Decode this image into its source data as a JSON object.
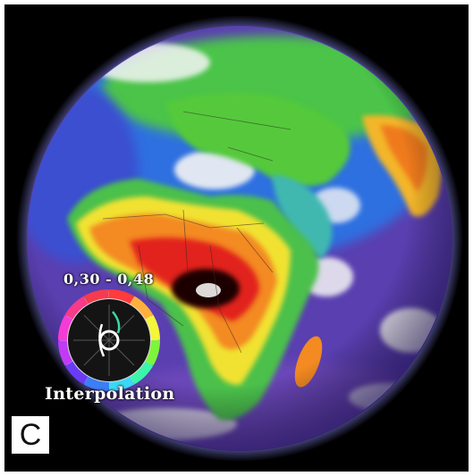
{
  "panel_label": "C",
  "widget": {
    "range_label": "0,30 - 0,48",
    "method_label": "Interpolation",
    "icon": "color-wheel-icon"
  },
  "colors": {
    "background": "#000000",
    "ocean_low": "#5a3fb0",
    "mid_blue": "#2f6fe0",
    "cyan": "#3fc8d8",
    "green": "#5ccf3a",
    "yellow": "#f1e233",
    "orange": "#f38a22",
    "red": "#e2231b",
    "max": "#1a0606",
    "cloud_white": "#f4f4f4",
    "atmosphere_glow": "#8d8cff"
  }
}
